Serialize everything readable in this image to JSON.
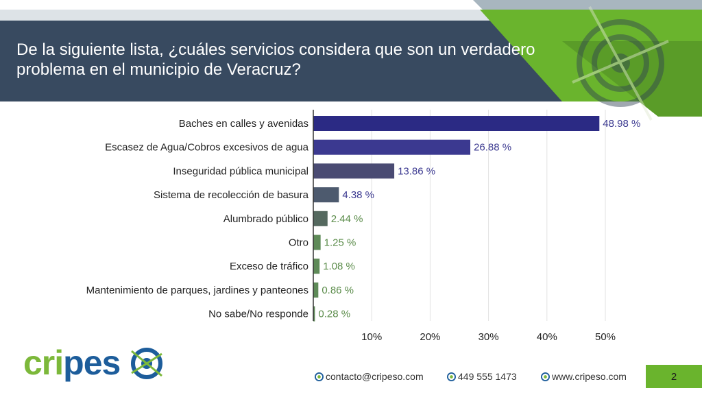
{
  "title": "De la siguiente lista, ¿cuáles servicios considera que son un verdadero problema en el municipio de Veracruz?",
  "chart_data": {
    "type": "bar",
    "orientation": "horizontal",
    "categories": [
      "Baches en calles y avenidas",
      "Escasez de Agua/Cobros excesivos de agua",
      "Inseguridad pública municipal",
      "Sistema de recolección de basura",
      "Alumbrado público",
      "Otro",
      "Exceso de tráfico",
      "Mantenimiento de parques, jardines y panteones",
      "No sabe/No responde"
    ],
    "values": [
      48.98,
      26.88,
      13.86,
      4.38,
      2.44,
      1.25,
      1.08,
      0.86,
      0.28
    ],
    "value_labels": [
      "48.98 %",
      "26.88 %",
      "13.86 %",
      "4.38 %",
      "2.44 %",
      "1.25 %",
      "1.08 %",
      "0.86 %",
      "0.28 %"
    ],
    "bar_colors": [
      "#2b2a84",
      "#3b3990",
      "#4a4b73",
      "#4d5a6e",
      "#55695f",
      "#5e8a58",
      "#5e8a58",
      "#5e8a58",
      "#5e8a58"
    ],
    "label_colors": [
      "#3b3990",
      "#3b3990",
      "#3b3990",
      "#3b3990",
      "#5b8c4a",
      "#5b8c4a",
      "#5b8c4a",
      "#5b8c4a",
      "#5b8c4a"
    ],
    "xticks": [
      "10%",
      "20%",
      "30%",
      "40%",
      "50%"
    ],
    "xlim": [
      0,
      50
    ],
    "grid": true
  },
  "logo": {
    "text": "cripes"
  },
  "footer": {
    "email": "contacto@cripeso.com",
    "phone": "449 555 1473",
    "web": "www.cripeso.com"
  },
  "page_number": "2",
  "colors": {
    "header": "#384a60",
    "accent_green": "#6ab42d",
    "logo_blue": "#1d5d9b"
  }
}
